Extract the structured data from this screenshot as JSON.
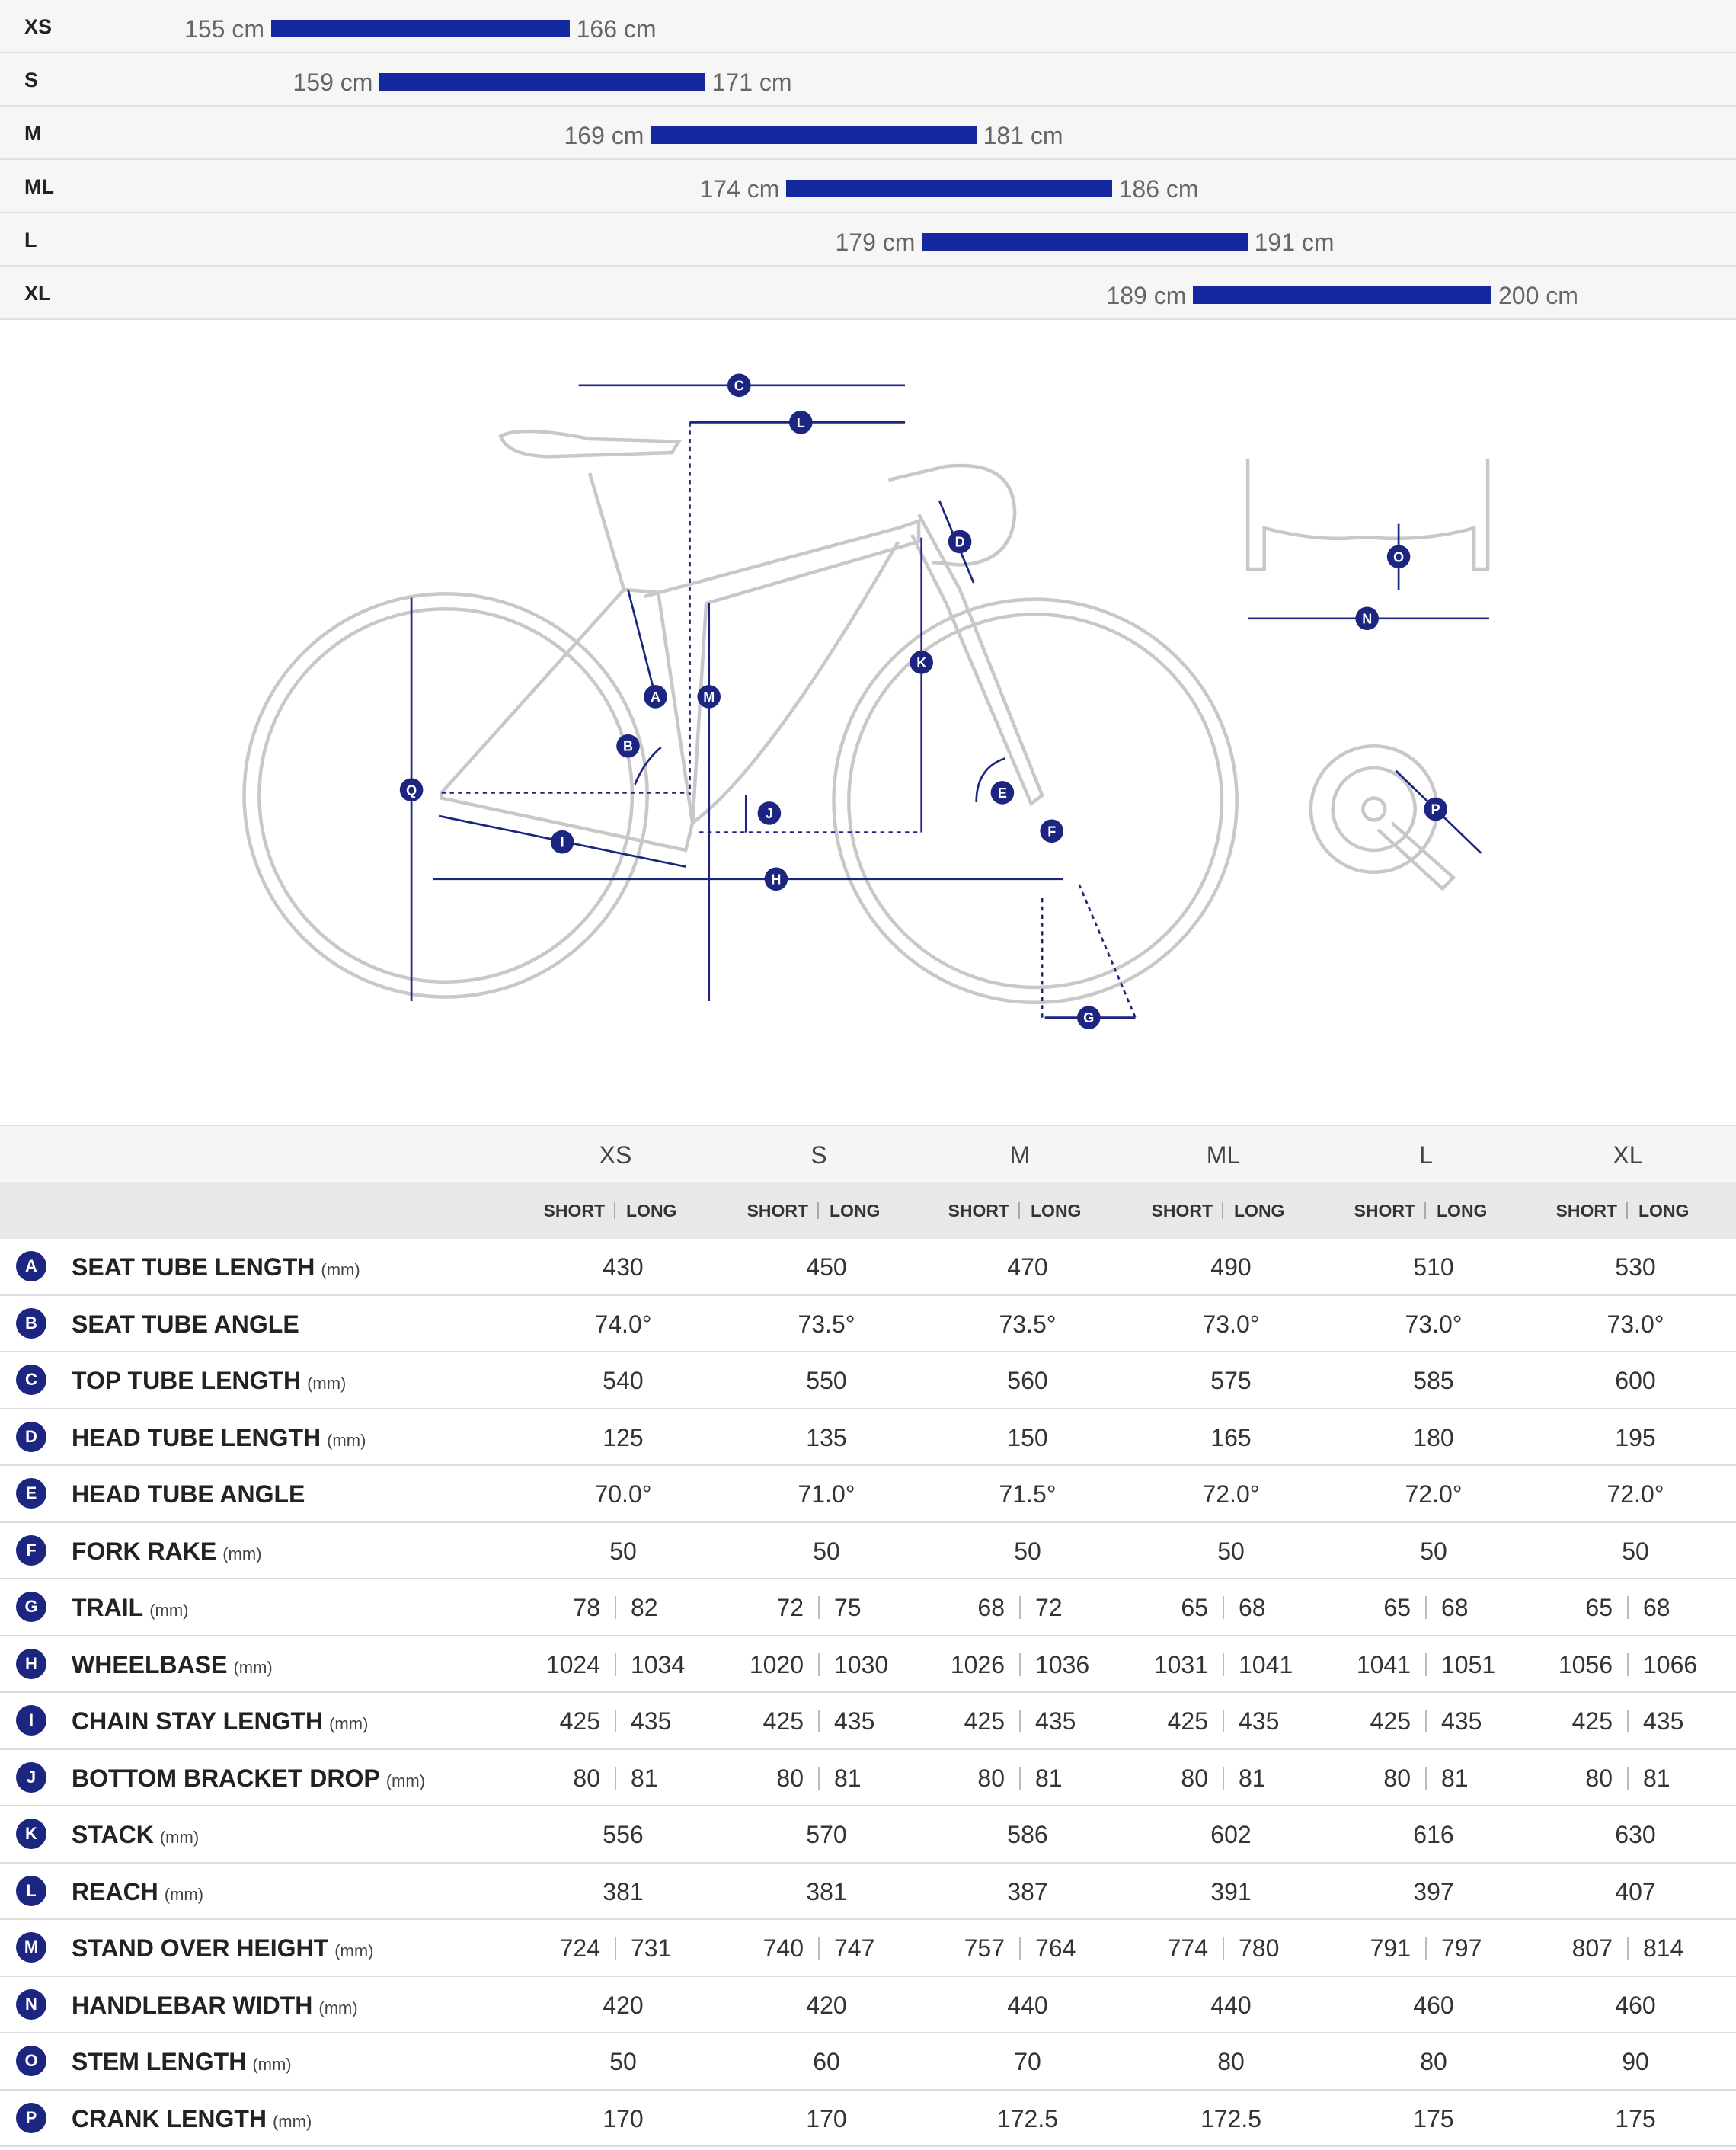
{
  "size_chart": {
    "rows": [
      {
        "size": "XS",
        "min": 155,
        "max": 166,
        "min_label": "155 cm",
        "max_label": "166 cm"
      },
      {
        "size": "S",
        "min": 159,
        "max": 171,
        "min_label": "159 cm",
        "max_label": "171 cm"
      },
      {
        "size": "M",
        "min": 169,
        "max": 181,
        "min_label": "169 cm",
        "max_label": "181 cm"
      },
      {
        "size": "ML",
        "min": 174,
        "max": 186,
        "min_label": "174 cm",
        "max_label": "186 cm"
      },
      {
        "size": "L",
        "min": 179,
        "max": 191,
        "min_label": "179 cm",
        "max_label": "191 cm"
      },
      {
        "size": "XL",
        "min": 189,
        "max": 200,
        "min_label": "189 cm",
        "max_label": "200 cm"
      }
    ]
  },
  "diagram": {
    "markers": [
      "C",
      "L",
      "D",
      "K",
      "M",
      "A",
      "B",
      "Q",
      "J",
      "E",
      "F",
      "I",
      "H",
      "G",
      "O",
      "N",
      "P"
    ]
  },
  "table": {
    "sizes": [
      "XS",
      "S",
      "M",
      "ML",
      "L",
      "XL"
    ],
    "subheader": {
      "short": "SHORT",
      "long": "LONG"
    },
    "rows": [
      {
        "letter": "A",
        "name": "SEAT TUBE LENGTH",
        "unit": "(mm)",
        "values": [
          "430",
          "450",
          "470",
          "490",
          "510",
          "530"
        ]
      },
      {
        "letter": "B",
        "name": "SEAT TUBE ANGLE",
        "values": [
          "74.0°",
          "73.5°",
          "73.5°",
          "73.0°",
          "73.0°",
          "73.0°"
        ]
      },
      {
        "letter": "C",
        "name": "TOP TUBE LENGTH",
        "unit": "(mm)",
        "values": [
          "540",
          "550",
          "560",
          "575",
          "585",
          "600"
        ]
      },
      {
        "letter": "D",
        "name": "HEAD TUBE LENGTH",
        "unit": "(mm)",
        "values": [
          "125",
          "135",
          "150",
          "165",
          "180",
          "195"
        ]
      },
      {
        "letter": "E",
        "name": "HEAD TUBE ANGLE",
        "values": [
          "70.0°",
          "71.0°",
          "71.5°",
          "72.0°",
          "72.0°",
          "72.0°"
        ]
      },
      {
        "letter": "F",
        "name": "FORK RAKE",
        "unit": "(mm)",
        "values": [
          "50",
          "50",
          "50",
          "50",
          "50",
          "50"
        ]
      },
      {
        "letter": "G",
        "name": "TRAIL",
        "unit": "(mm)",
        "values": [
          [
            "78",
            "82"
          ],
          [
            "72",
            "75"
          ],
          [
            "68",
            "72"
          ],
          [
            "65",
            "68"
          ],
          [
            "65",
            "68"
          ],
          [
            "65",
            "68"
          ]
        ]
      },
      {
        "letter": "H",
        "name": "WHEELBASE",
        "unit": "(mm)",
        "values": [
          [
            "1024",
            "1034"
          ],
          [
            "1020",
            "1030"
          ],
          [
            "1026",
            "1036"
          ],
          [
            "1031",
            "1041"
          ],
          [
            "1041",
            "1051"
          ],
          [
            "1056",
            "1066"
          ]
        ]
      },
      {
        "letter": "I",
        "name": "CHAIN STAY LENGTH",
        "unit": "(mm)",
        "values": [
          [
            "425",
            "435"
          ],
          [
            "425",
            "435"
          ],
          [
            "425",
            "435"
          ],
          [
            "425",
            "435"
          ],
          [
            "425",
            "435"
          ],
          [
            "425",
            "435"
          ]
        ]
      },
      {
        "letter": "J",
        "name": "BOTTOM BRACKET DROP",
        "unit": "(mm)",
        "values": [
          [
            "80",
            "81"
          ],
          [
            "80",
            "81"
          ],
          [
            "80",
            "81"
          ],
          [
            "80",
            "81"
          ],
          [
            "80",
            "81"
          ],
          [
            "80",
            "81"
          ]
        ]
      },
      {
        "letter": "K",
        "name": "STACK",
        "unit": "(mm)",
        "values": [
          "556",
          "570",
          "586",
          "602",
          "616",
          "630"
        ]
      },
      {
        "letter": "L",
        "name": "REACH",
        "unit": "(mm)",
        "values": [
          "381",
          "381",
          "387",
          "391",
          "397",
          "407"
        ]
      },
      {
        "letter": "M",
        "name": "STAND OVER HEIGHT",
        "unit": "(mm)",
        "values": [
          [
            "724",
            "731"
          ],
          [
            "740",
            "747"
          ],
          [
            "757",
            "764"
          ],
          [
            "774",
            "780"
          ],
          [
            "791",
            "797"
          ],
          [
            "807",
            "814"
          ]
        ]
      },
      {
        "letter": "N",
        "name": "HANDLEBAR WIDTH",
        "unit": "(mm)",
        "values": [
          "420",
          "420",
          "440",
          "440",
          "460",
          "460"
        ]
      },
      {
        "letter": "O",
        "name": "STEM LENGTH",
        "unit": "(mm)",
        "values": [
          "50",
          "60",
          "70",
          "80",
          "80",
          "90"
        ]
      },
      {
        "letter": "P",
        "name": "CRANK LENGTH",
        "unit": "(mm)",
        "values": [
          "170",
          "170",
          "172.5",
          "172.5",
          "175",
          "175"
        ]
      }
    ]
  }
}
